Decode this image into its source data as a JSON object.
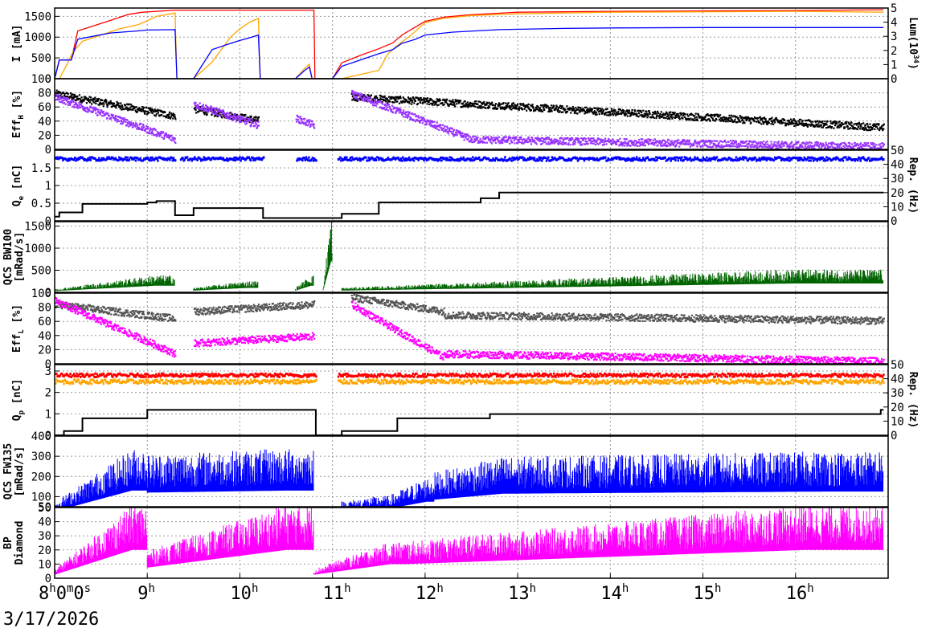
{
  "chart_data": {
    "type": "line",
    "date_label": "3/17/2026",
    "time_axis": {
      "start_hour": 8,
      "end_hour": 17,
      "ticks": [
        {
          "hour": 8,
          "main": "8",
          "sup": "h",
          "rest": "0",
          "sup2": "m",
          "rest2": "0",
          "sup3": "s"
        },
        {
          "hour": 9,
          "main": "9",
          "sup": "h"
        },
        {
          "hour": 10,
          "main": "10",
          "sup": "h"
        },
        {
          "hour": 11,
          "main": "11",
          "sup": "h"
        },
        {
          "hour": 12,
          "main": "12",
          "sup": "h"
        },
        {
          "hour": 13,
          "main": "13",
          "sup": "h"
        },
        {
          "hour": 14,
          "main": "14",
          "sup": "h"
        },
        {
          "hour": 15,
          "main": "15",
          "sup": "h"
        },
        {
          "hour": 16,
          "main": "16",
          "sup": "h"
        }
      ]
    },
    "panels": [
      {
        "id": "current",
        "ylabel_lines": [
          "I [mA]"
        ],
        "ylim": [
          0,
          1700
        ],
        "yticks": [
          0,
          500,
          1000,
          1500
        ],
        "y2label": "Lum(10^34)",
        "y2lim": [
          0,
          5
        ],
        "y2ticks": [
          0,
          1,
          2,
          3,
          4,
          5
        ],
        "series": [
          {
            "color": "#ff0000",
            "kind": "line",
            "points": [
              [
                8.0,
                0
              ],
              [
                8.05,
                450
              ],
              [
                8.18,
                450
              ],
              [
                8.25,
                1150
              ],
              [
                8.6,
                1400
              ],
              [
                8.8,
                1550
              ],
              [
                8.95,
                1600
              ],
              [
                9.3,
                1650
              ],
              [
                10.8,
                1650
              ],
              [
                10.81,
                0
              ],
              [
                11.0,
                0
              ],
              [
                11.1,
                380
              ],
              [
                11.3,
                560
              ],
              [
                11.5,
                720
              ],
              [
                11.65,
                860
              ],
              [
                11.75,
                1050
              ],
              [
                11.9,
                1250
              ],
              [
                12.0,
                1380
              ],
              [
                12.2,
                1480
              ],
              [
                12.5,
                1540
              ],
              [
                13.0,
                1600
              ],
              [
                14.0,
                1620
              ],
              [
                15.0,
                1630
              ],
              [
                16.0,
                1640
              ],
              [
                16.95,
                1660
              ]
            ]
          },
          {
            "color": "#ffa500",
            "kind": "line",
            "points": [
              [
                8.0,
                0
              ],
              [
                8.05,
                0
              ],
              [
                8.1,
                200
              ],
              [
                8.2,
                650
              ],
              [
                8.3,
                900
              ],
              [
                8.5,
                1050
              ],
              [
                8.7,
                1200
              ],
              [
                8.9,
                1300
              ],
              [
                9.0,
                1390
              ],
              [
                9.05,
                1450
              ],
              [
                9.1,
                1500
              ],
              [
                9.3,
                1580
              ],
              [
                9.32,
                0
              ],
              [
                9.5,
                0
              ],
              [
                9.7,
                400
              ],
              [
                9.8,
                700
              ],
              [
                9.9,
                1000
              ],
              [
                10.0,
                1200
              ],
              [
                10.1,
                1350
              ],
              [
                10.2,
                1450
              ],
              [
                10.22,
                0
              ],
              [
                10.6,
                0
              ],
              [
                10.7,
                250
              ],
              [
                10.75,
                350
              ],
              [
                10.78,
                0
              ],
              [
                11.1,
                0
              ],
              [
                11.2,
                50
              ],
              [
                11.3,
                100
              ],
              [
                11.5,
                200
              ],
              [
                11.6,
                600
              ],
              [
                11.7,
                800
              ],
              [
                11.85,
                1050
              ],
              [
                11.95,
                1250
              ],
              [
                12.0,
                1350
              ],
              [
                12.2,
                1450
              ],
              [
                12.5,
                1520
              ],
              [
                13.0,
                1560
              ],
              [
                14.0,
                1600
              ],
              [
                15.0,
                1610
              ],
              [
                16.0,
                1620
              ],
              [
                16.95,
                1600
              ]
            ]
          },
          {
            "color": "#0000ff",
            "kind": "line",
            "points": [
              [
                8.0,
                0
              ],
              [
                8.05,
                450
              ],
              [
                8.18,
                450
              ],
              [
                8.25,
                950
              ],
              [
                8.6,
                1100
              ],
              [
                8.9,
                1150
              ],
              [
                9.0,
                1170
              ],
              [
                9.3,
                1180
              ],
              [
                9.32,
                0
              ],
              [
                9.5,
                0
              ],
              [
                9.7,
                700
              ],
              [
                9.9,
                850
              ],
              [
                10.0,
                920
              ],
              [
                10.1,
                980
              ],
              [
                10.2,
                1050
              ],
              [
                10.22,
                0
              ],
              [
                10.6,
                0
              ],
              [
                10.7,
                200
              ],
              [
                10.75,
                280
              ],
              [
                10.78,
                0
              ],
              [
                11.0,
                0
              ],
              [
                11.1,
                300
              ],
              [
                11.3,
                450
              ],
              [
                11.5,
                600
              ],
              [
                11.65,
                700
              ],
              [
                11.75,
                850
              ],
              [
                11.9,
                950
              ],
              [
                12.0,
                1050
              ],
              [
                12.3,
                1120
              ],
              [
                12.8,
                1180
              ],
              [
                13.5,
                1210
              ],
              [
                14.0,
                1220
              ],
              [
                15.0,
                1230
              ],
              [
                16.0,
                1230
              ],
              [
                16.95,
                1230
              ]
            ]
          }
        ]
      },
      {
        "id": "effh",
        "ylabel_lines": [
          "Eff_H [%]"
        ],
        "ylim": [
          0,
          100
        ],
        "yticks": [
          0,
          20,
          40,
          60,
          80,
          100
        ],
        "series": [
          {
            "color": "#000000",
            "kind": "scatter",
            "segments": [
              [
                8.0,
                9.3,
                80,
                48
              ],
              [
                9.5,
                10.2,
                58,
                42
              ],
              [
                11.2,
                16.95,
                75,
                32
              ]
            ]
          },
          {
            "color": "#9933ff",
            "kind": "scatter",
            "segments": [
              [
                8.0,
                9.3,
                75,
                15
              ],
              [
                9.5,
                10.2,
                65,
                35
              ],
              [
                10.6,
                10.8,
                45,
                35
              ],
              [
                11.2,
                12.5,
                80,
                15
              ],
              [
                12.5,
                16.95,
                15,
                5
              ]
            ]
          }
        ]
      },
      {
        "id": "qe",
        "ylabel_lines": [
          "Q_e [nC]"
        ],
        "ylim": [
          0,
          2.0
        ],
        "yticks": [
          0,
          0.5,
          1,
          1.5
        ],
        "y2label": "Rep. (Hz)",
        "y2lim": [
          0,
          50
        ],
        "y2ticks": [
          0,
          10,
          20,
          30,
          40,
          50
        ],
        "series": [
          {
            "color": "#0000ff",
            "kind": "band",
            "level": 1.75,
            "spread": 0.05,
            "gaps": [
              [
                9.3,
                9.35
              ],
              [
                10.25,
                10.6
              ],
              [
                10.82,
                11.05
              ]
            ]
          },
          {
            "color": "#000000",
            "kind": "step",
            "y2": true,
            "points": [
              [
                8.0,
                3
              ],
              [
                8.05,
                6
              ],
              [
                8.3,
                12
              ],
              [
                8.6,
                12
              ],
              [
                9.0,
                13
              ],
              [
                9.1,
                14
              ],
              [
                9.3,
                4
              ],
              [
                9.5,
                9
              ],
              [
                10.25,
                2
              ],
              [
                10.6,
                2
              ],
              [
                10.8,
                2
              ],
              [
                11.1,
                5
              ],
              [
                11.5,
                13
              ],
              [
                12.0,
                13
              ],
              [
                12.6,
                16
              ],
              [
                12.8,
                20
              ],
              [
                16.95,
                20
              ]
            ]
          }
        ]
      },
      {
        "id": "bw100",
        "ylabel_lines": [
          "QCS BW100",
          "[mRad/s]"
        ],
        "ylim": [
          0,
          1600
        ],
        "yticks": [
          0,
          500,
          1000,
          1500
        ],
        "series": [
          {
            "color": "#006400",
            "kind": "spikes",
            "segments": [
              [
                8.0,
                9.3,
                60,
                300
              ],
              [
                9.5,
                10.2,
                80,
                200
              ],
              [
                10.6,
                10.8,
                80,
                300
              ],
              [
                10.9,
                11.0,
                100,
                1400
              ],
              [
                11.1,
                16.95,
                80,
                400
              ]
            ]
          }
        ]
      },
      {
        "id": "effl",
        "ylabel_lines": [
          "Eff_L [%]"
        ],
        "ylim": [
          0,
          100
        ],
        "yticks": [
          0,
          20,
          40,
          60,
          80,
          100
        ],
        "series": [
          {
            "color": "#555555",
            "kind": "scatter",
            "segments": [
              [
                8.0,
                9.3,
                85,
                65
              ],
              [
                9.5,
                10.8,
                75,
                85
              ],
              [
                11.2,
                12.2,
                95,
                75
              ],
              [
                12.2,
                16.95,
                70,
                62
              ]
            ]
          },
          {
            "color": "#ff00ff",
            "kind": "scatter",
            "segments": [
              [
                8.0,
                9.3,
                90,
                15
              ],
              [
                9.5,
                10.8,
                30,
                40
              ],
              [
                11.2,
                12.2,
                85,
                10
              ],
              [
                12.2,
                16.95,
                15,
                5
              ]
            ]
          }
        ]
      },
      {
        "id": "qp",
        "ylabel_lines": [
          "Q_p [nC]"
        ],
        "ylim": [
          0,
          3.3
        ],
        "yticks": [
          0,
          1,
          2,
          3
        ],
        "y2label": "Rep. (Hz)",
        "y2lim": [
          0,
          50
        ],
        "y2ticks": [
          0,
          10,
          20,
          30,
          40,
          50
        ],
        "series": [
          {
            "color": "#ffa500",
            "kind": "band",
            "level": 2.5,
            "spread": 0.1,
            "gaps": [
              [
                10.82,
                11.05
              ]
            ]
          },
          {
            "color": "#ff0000",
            "kind": "band",
            "level": 2.8,
            "spread": 0.08,
            "gaps": [
              [
                10.82,
                11.05
              ]
            ]
          },
          {
            "color": "#000000",
            "kind": "step",
            "y2": true,
            "points": [
              [
                8.0,
                0
              ],
              [
                8.1,
                3
              ],
              [
                8.3,
                12
              ],
              [
                9.0,
                18
              ],
              [
                10.8,
                18
              ],
              [
                10.82,
                0
              ],
              [
                11.1,
                3
              ],
              [
                11.3,
                3
              ],
              [
                11.7,
                12
              ],
              [
                12.6,
                12
              ],
              [
                12.7,
                15
              ],
              [
                16.9,
                15
              ],
              [
                16.92,
                18
              ],
              [
                16.95,
                18
              ]
            ]
          }
        ]
      },
      {
        "id": "fw135",
        "ylabel_lines": [
          "QCS FW135",
          "[mRad/s]"
        ],
        "ylim": [
          50,
          400
        ],
        "yticks": [
          50,
          100,
          200,
          300,
          400
        ],
        "series": [
          {
            "color": "#0000ff",
            "kind": "spikes",
            "segments": [
              [
                8.0,
                9.0,
                55,
                260
              ],
              [
                9.0,
                10.8,
                240,
                260
              ],
              [
                11.1,
                11.6,
                60,
                80
              ],
              [
                11.6,
                12.1,
                80,
                150
              ],
              [
                12.1,
                13.0,
                170,
                230
              ],
              [
                13.0,
                16.95,
                230,
                250
              ]
            ]
          }
        ]
      },
      {
        "id": "bp",
        "ylabel_lines": [
          "BP",
          "Diamond"
        ],
        "ylim": [
          0,
          50
        ],
        "yticks": [
          0,
          10,
          20,
          30,
          40,
          50
        ],
        "series": [
          {
            "color": "#ff00ff",
            "kind": "spikes",
            "segments": [
              [
                8.0,
                9.0,
                5,
                40
              ],
              [
                9.0,
                10.8,
                15,
                40
              ],
              [
                10.8,
                11.8,
                5,
                20
              ],
              [
                11.8,
                16.95,
                20,
                40
              ]
            ]
          }
        ]
      }
    ]
  }
}
